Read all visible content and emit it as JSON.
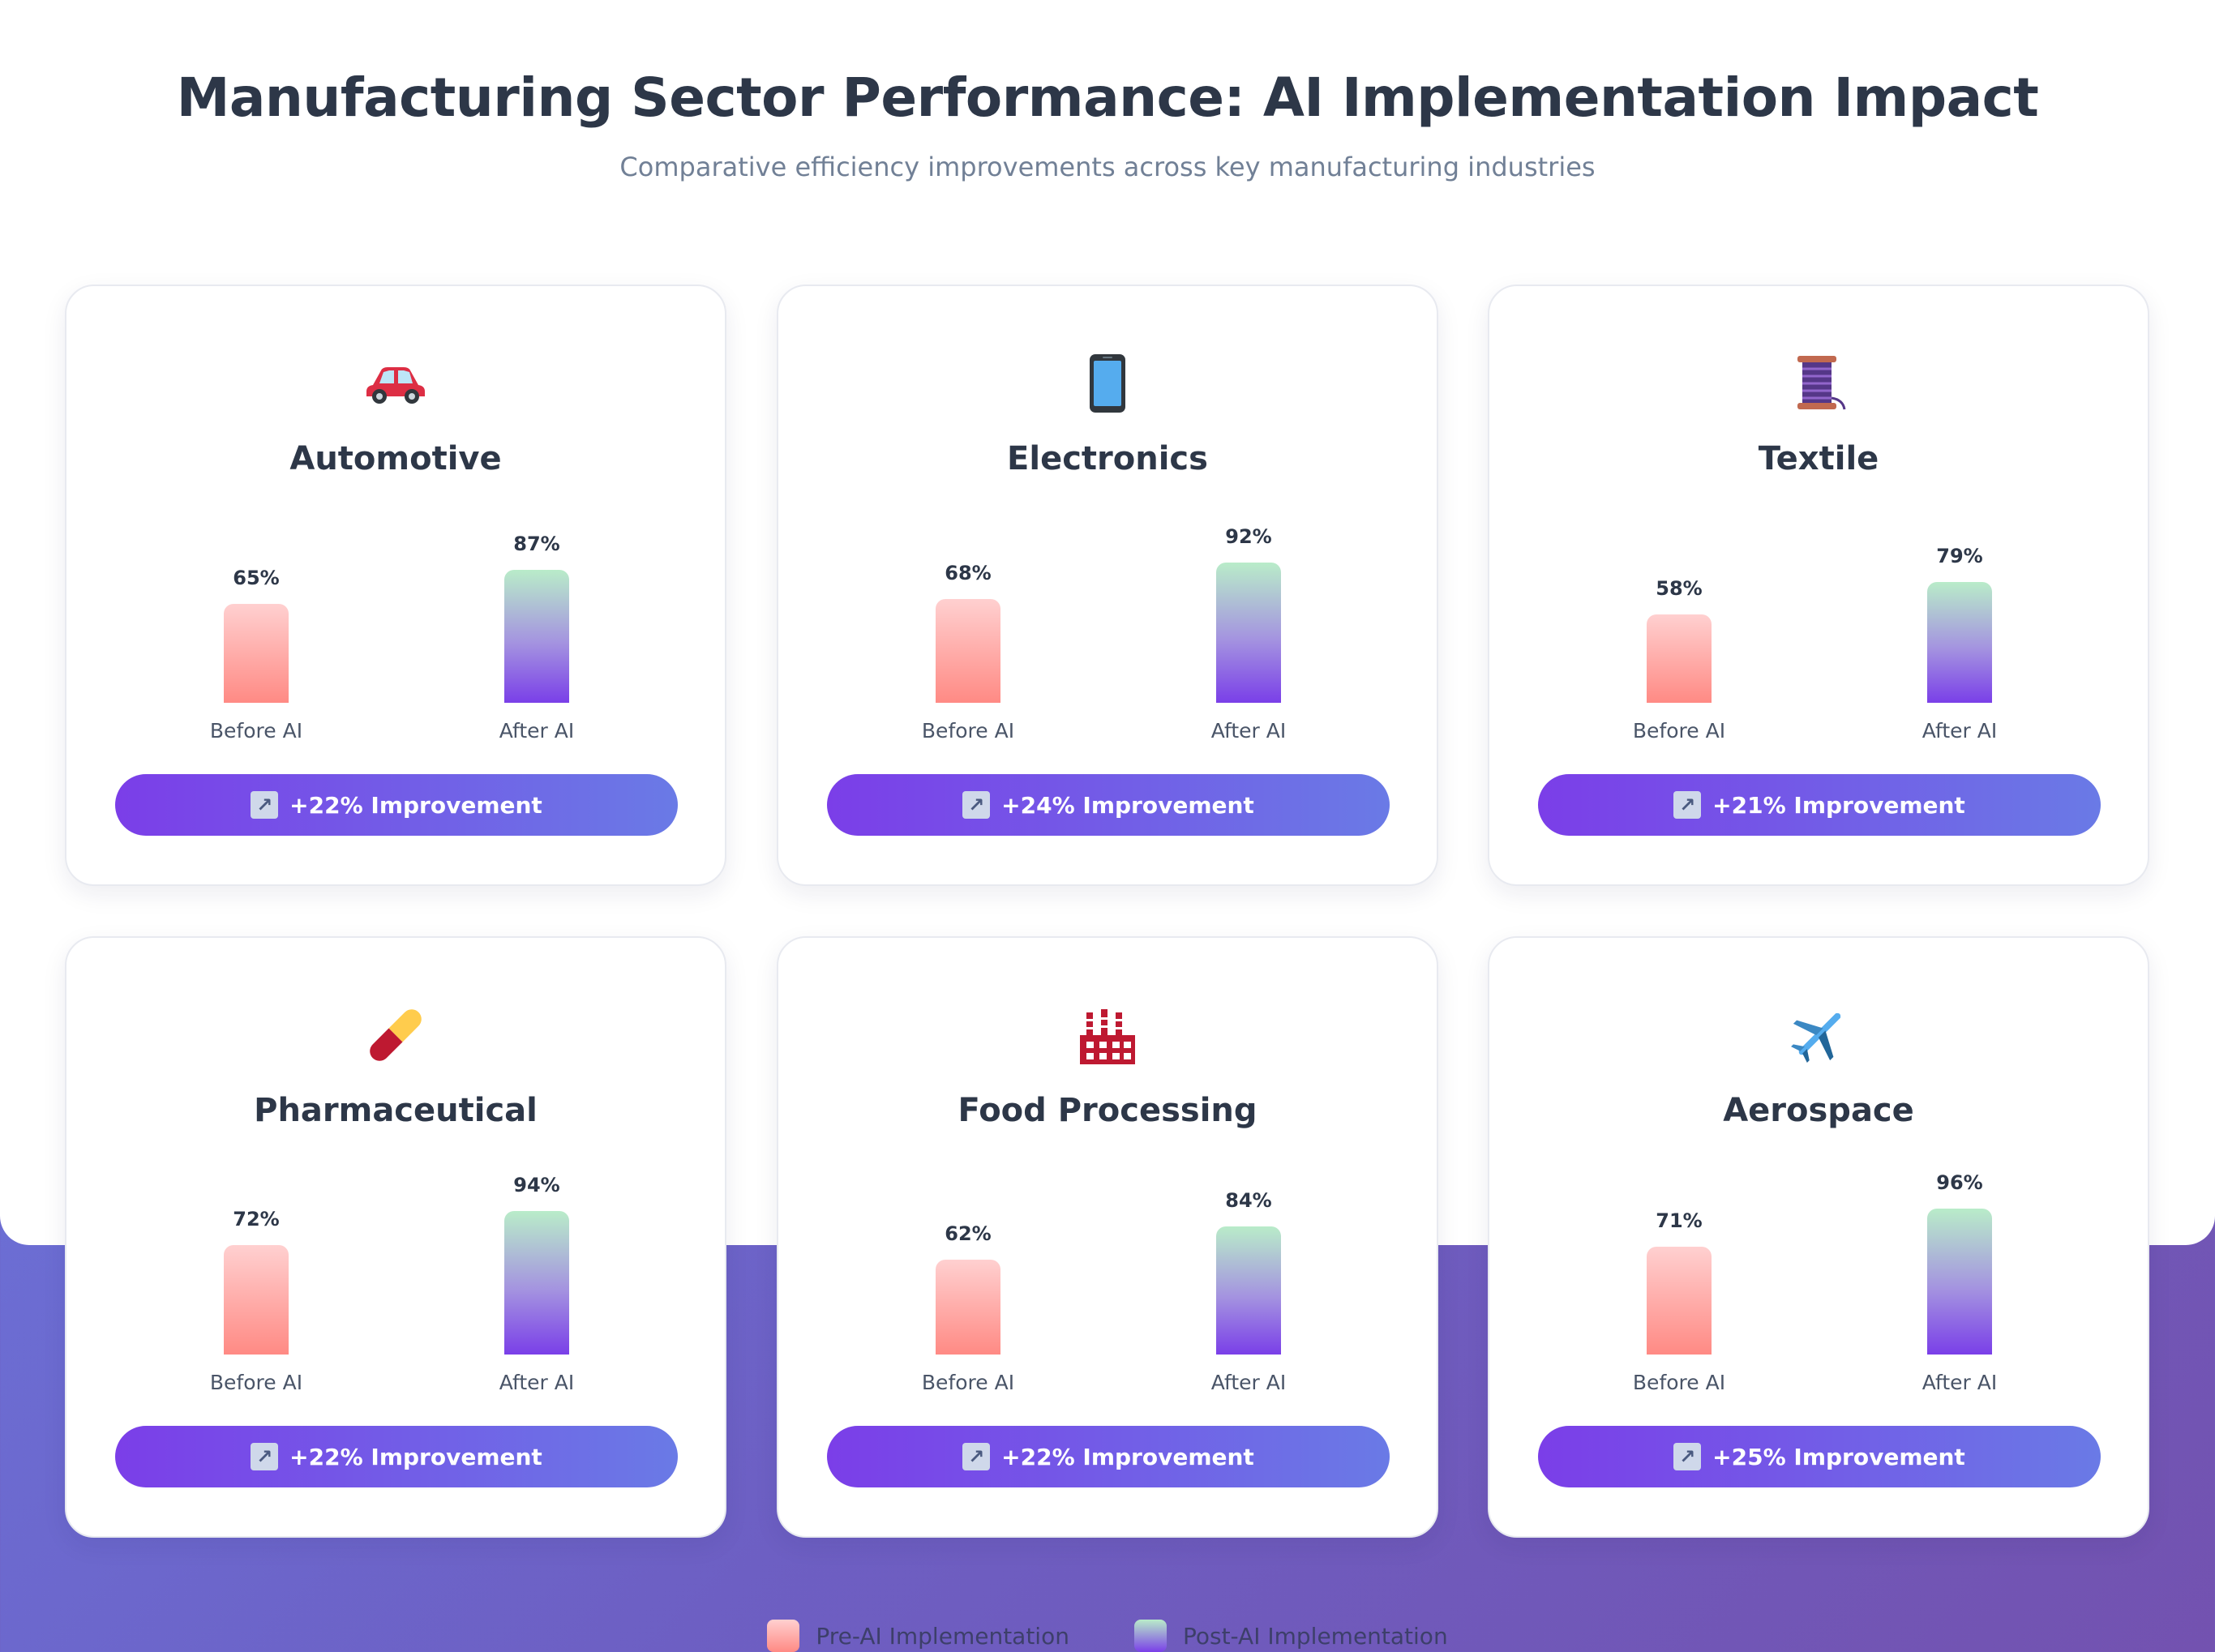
{
  "header": {
    "title": "Manufacturing Sector Performance: AI Implementation Impact",
    "subtitle": "Comparative efficiency improvements across key manufacturing industries"
  },
  "chart_data": {
    "type": "bar",
    "ylim": [
      0,
      100
    ],
    "legend": {
      "placement": "bottom-center",
      "items": [
        "Pre-AI Implementation",
        "Post-AI Implementation"
      ]
    },
    "categories": [
      "Before AI",
      "After AI"
    ],
    "sectors": [
      {
        "name": "Automotive",
        "icon": "car-icon",
        "before": 65,
        "after": 87,
        "before_label": "65%",
        "after_label": "87%",
        "improvement": "+22% Improvement"
      },
      {
        "name": "Electronics",
        "icon": "mobile-phone-icon",
        "before": 68,
        "after": 92,
        "before_label": "68%",
        "after_label": "92%",
        "improvement": "+24% Improvement"
      },
      {
        "name": "Textile",
        "icon": "thread-spool-icon",
        "before": 58,
        "after": 79,
        "before_label": "58%",
        "after_label": "79%",
        "improvement": "+21% Improvement"
      },
      {
        "name": "Pharmaceutical",
        "icon": "pill-icon",
        "before": 72,
        "after": 94,
        "before_label": "72%",
        "after_label": "94%",
        "improvement": "+22% Improvement"
      },
      {
        "name": "Food Processing",
        "icon": "factory-icon",
        "before": 62,
        "after": 84,
        "before_label": "62%",
        "after_label": "84%",
        "improvement": "+22% Improvement"
      },
      {
        "name": "Aerospace",
        "icon": "airplane-icon",
        "before": 71,
        "after": 96,
        "before_label": "71%",
        "after_label": "96%",
        "improvement": "+25% Improvement"
      }
    ]
  },
  "colors": {
    "before_top": "#ffd0d0",
    "before_bottom": "#ff8a84",
    "after_top": "#b9ecc9",
    "after_bottom": "#7a3fe8",
    "pill_start": "#7b3ee8",
    "pill_end": "#6a7ae6"
  }
}
